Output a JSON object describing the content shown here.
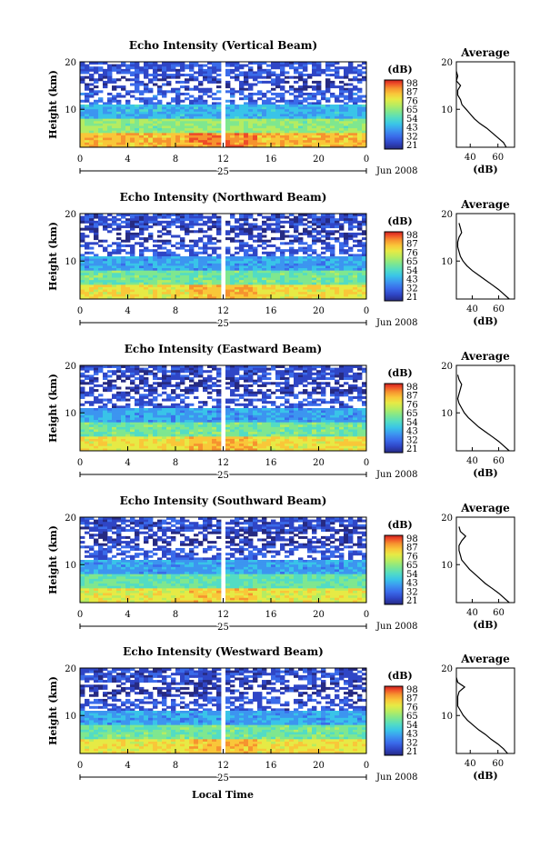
{
  "colors": {
    "colormap": [
      "#262a82",
      "#2f46c6",
      "#3a6bea",
      "#3c95f0",
      "#39c4e8",
      "#53dcc4",
      "#7fe78f",
      "#b5ec62",
      "#e6ea45",
      "#f9c739",
      "#f6932f",
      "#ee4c28",
      "#c8201e"
    ]
  },
  "panels": [
    {
      "title": "Echo Intensity (Vertical Beam)",
      "ylabel": "Height (km)",
      "yticks": [
        "20",
        "10"
      ],
      "xticks": [
        "0",
        "4",
        "8",
        "12",
        "16",
        "20",
        "0"
      ],
      "date_label": "25",
      "month_label": "Jun 2008",
      "cbar_label": "(dB)",
      "cbar_ticks": [
        "98",
        "87",
        "76",
        "65",
        "54",
        "43",
        "32",
        "21"
      ],
      "avg_title": "Average",
      "avg_yticks": [
        "20",
        "10"
      ],
      "avg_xticks": [
        "40",
        "60"
      ],
      "avg_xlabel": "(dB)"
    },
    {
      "title": "Echo Intensity (Northward Beam)",
      "ylabel": "Height (km)",
      "yticks": [
        "20",
        "10"
      ],
      "xticks": [
        "0",
        "4",
        "8",
        "12",
        "16",
        "20",
        "0"
      ],
      "date_label": "25",
      "month_label": "Jun 2008",
      "cbar_label": "(dB)",
      "cbar_ticks": [
        "98",
        "87",
        "76",
        "65",
        "54",
        "43",
        "32",
        "21"
      ],
      "avg_title": "Average",
      "avg_yticks": [
        "20",
        "10"
      ],
      "avg_xticks": [
        "40",
        "60"
      ],
      "avg_xlabel": "(dB)"
    },
    {
      "title": "Echo Intensity (Eastward Beam)",
      "ylabel": "Height (km)",
      "yticks": [
        "20",
        "10"
      ],
      "xticks": [
        "0",
        "4",
        "8",
        "12",
        "16",
        "20",
        "0"
      ],
      "date_label": "25",
      "month_label": "Jun 2008",
      "cbar_label": "(dB)",
      "cbar_ticks": [
        "98",
        "87",
        "76",
        "65",
        "54",
        "43",
        "32",
        "21"
      ],
      "avg_title": "Average",
      "avg_yticks": [
        "20",
        "10"
      ],
      "avg_xticks": [
        "40",
        "60"
      ],
      "avg_xlabel": "(dB)"
    },
    {
      "title": "Echo Intensity (Southward Beam)",
      "ylabel": "Height (km)",
      "yticks": [
        "20",
        "10"
      ],
      "xticks": [
        "0",
        "4",
        "8",
        "12",
        "16",
        "20",
        "0"
      ],
      "date_label": "25",
      "month_label": "Jun 2008",
      "cbar_label": "(dB)",
      "cbar_ticks": [
        "98",
        "87",
        "76",
        "65",
        "54",
        "43",
        "32",
        "21"
      ],
      "avg_title": "Average",
      "avg_yticks": [
        "20",
        "10"
      ],
      "avg_xticks": [
        "40",
        "60"
      ],
      "avg_xlabel": "(dB)"
    },
    {
      "title": "Echo Intensity (Westward Beam)",
      "ylabel": "Height (km)",
      "yticks": [
        "20",
        "10"
      ],
      "xticks": [
        "0",
        "4",
        "8",
        "12",
        "16",
        "20",
        "0"
      ],
      "date_label": "25",
      "month_label": "Jun 2008",
      "cbar_label": "(dB)",
      "cbar_ticks": [
        "98",
        "87",
        "76",
        "65",
        "54",
        "43",
        "32",
        "21"
      ],
      "avg_title": "Average",
      "avg_yticks": [
        "20",
        "10"
      ],
      "avg_xticks": [
        "40",
        "60"
      ],
      "avg_xlabel": "(dB)"
    }
  ],
  "xlabel_bottom": "Local Time",
  "chart_data": [
    {
      "type": "heatmap",
      "title": "Echo Intensity (Vertical Beam)",
      "xlabel": "",
      "ylabel": "Height (km)",
      "xlim": [
        0,
        24
      ],
      "ylim": [
        2,
        20
      ],
      "colorbar": {
        "label": "(dB)",
        "range": [
          21,
          98
        ]
      },
      "gap_x": 12,
      "layers": [
        {
          "h_min": 2,
          "h_max": 5,
          "db": 80
        },
        {
          "h_min": 5,
          "h_max": 8,
          "db": 62
        },
        {
          "h_min": 8,
          "h_max": 11,
          "db": 45
        },
        {
          "h_min": 11,
          "h_max": 14,
          "db": 32
        },
        {
          "h_min": 14,
          "h_max": 17,
          "db": 26
        },
        {
          "h_min": 17,
          "h_max": 20,
          "db": 30
        }
      ]
    },
    {
      "type": "line",
      "title": "Average",
      "xlabel": "(dB)",
      "ylabel": "",
      "xlim": [
        30,
        72
      ],
      "ylim": [
        2,
        20
      ],
      "x": [
        66,
        64,
        60,
        56,
        52,
        47,
        43,
        40,
        37,
        34,
        33,
        31,
        31,
        33,
        30,
        31,
        30
      ],
      "y": [
        2,
        3,
        4,
        5,
        6,
        7,
        8,
        9,
        10,
        11,
        12,
        13,
        14,
        15,
        16,
        17,
        18
      ]
    },
    {
      "type": "heatmap",
      "title": "Echo Intensity (Northward Beam)",
      "xlabel": "",
      "ylabel": "Height (km)",
      "xlim": [
        0,
        24
      ],
      "ylim": [
        2,
        20
      ],
      "colorbar": {
        "label": "(dB)",
        "range": [
          21,
          98
        ]
      },
      "gap_x": 12,
      "layers": [
        {
          "h_min": 2,
          "h_max": 5,
          "db": 74
        },
        {
          "h_min": 5,
          "h_max": 8,
          "db": 58
        },
        {
          "h_min": 8,
          "h_max": 11,
          "db": 42
        },
        {
          "h_min": 11,
          "h_max": 14,
          "db": 30
        },
        {
          "h_min": 14,
          "h_max": 17,
          "db": 25
        },
        {
          "h_min": 17,
          "h_max": 20,
          "db": 28
        }
      ]
    },
    {
      "type": "line",
      "title": "Average",
      "xlabel": "(dB)",
      "ylabel": "",
      "xlim": [
        28,
        72
      ],
      "ylim": [
        2,
        20
      ],
      "x": [
        68,
        64,
        60,
        55,
        50,
        45,
        40,
        36,
        33,
        31,
        30,
        29,
        29,
        30,
        32,
        31,
        30
      ],
      "y": [
        2,
        3,
        4,
        5,
        6,
        7,
        8,
        9,
        10,
        11,
        12,
        13,
        14,
        15,
        16,
        17,
        18
      ]
    },
    {
      "type": "heatmap",
      "title": "Echo Intensity (Eastward Beam)",
      "xlabel": "",
      "ylabel": "Height (km)",
      "xlim": [
        0,
        24
      ],
      "ylim": [
        2,
        20
      ],
      "colorbar": {
        "label": "(dB)",
        "range": [
          21,
          98
        ]
      },
      "gap_x": 12,
      "layers": [
        {
          "h_min": 2,
          "h_max": 5,
          "db": 74
        },
        {
          "h_min": 5,
          "h_max": 8,
          "db": 58
        },
        {
          "h_min": 8,
          "h_max": 11,
          "db": 42
        },
        {
          "h_min": 11,
          "h_max": 14,
          "db": 30
        },
        {
          "h_min": 14,
          "h_max": 17,
          "db": 25
        },
        {
          "h_min": 17,
          "h_max": 20,
          "db": 28
        }
      ]
    },
    {
      "type": "line",
      "title": "Average",
      "xlabel": "(dB)",
      "ylabel": "",
      "xlim": [
        28,
        72
      ],
      "ylim": [
        2,
        20
      ],
      "x": [
        68,
        64,
        60,
        55,
        50,
        45,
        41,
        37,
        34,
        32,
        30,
        29,
        30,
        31,
        32,
        30,
        29
      ],
      "y": [
        2,
        3,
        4,
        5,
        6,
        7,
        8,
        9,
        10,
        11,
        12,
        13,
        14,
        15,
        16,
        17,
        18
      ]
    },
    {
      "type": "heatmap",
      "title": "Echo Intensity (Southward Beam)",
      "xlabel": "",
      "ylabel": "Height (km)",
      "xlim": [
        0,
        24
      ],
      "ylim": [
        2,
        20
      ],
      "colorbar": {
        "label": "(dB)",
        "range": [
          21,
          98
        ]
      },
      "gap_x": 12,
      "layers": [
        {
          "h_min": 2,
          "h_max": 5,
          "db": 72
        },
        {
          "h_min": 5,
          "h_max": 8,
          "db": 56
        },
        {
          "h_min": 8,
          "h_max": 11,
          "db": 42
        },
        {
          "h_min": 11,
          "h_max": 14,
          "db": 30
        },
        {
          "h_min": 14,
          "h_max": 17,
          "db": 25
        },
        {
          "h_min": 17,
          "h_max": 20,
          "db": 28
        }
      ]
    },
    {
      "type": "line",
      "title": "Average",
      "xlabel": "(dB)",
      "ylabel": "",
      "xlim": [
        28,
        72
      ],
      "ylim": [
        2,
        20
      ],
      "x": [
        68,
        64,
        60,
        55,
        50,
        46,
        42,
        38,
        35,
        32,
        31,
        30,
        30,
        32,
        35,
        31,
        30
      ],
      "y": [
        2,
        3,
        4,
        5,
        6,
        7,
        8,
        9,
        10,
        11,
        12,
        13,
        14,
        15,
        16,
        17,
        18
      ]
    },
    {
      "type": "heatmap",
      "title": "Echo Intensity (Westward Beam)",
      "xlabel": "Local Time",
      "ylabel": "Height (km)",
      "xlim": [
        0,
        24
      ],
      "ylim": [
        2,
        20
      ],
      "colorbar": {
        "label": "(dB)",
        "range": [
          21,
          98
        ]
      },
      "gap_x": 12,
      "layers": [
        {
          "h_min": 2,
          "h_max": 5,
          "db": 74
        },
        {
          "h_min": 5,
          "h_max": 8,
          "db": 58
        },
        {
          "h_min": 8,
          "h_max": 11,
          "db": 42
        },
        {
          "h_min": 11,
          "h_max": 14,
          "db": 30
        },
        {
          "h_min": 14,
          "h_max": 17,
          "db": 25
        },
        {
          "h_min": 17,
          "h_max": 20,
          "db": 28
        }
      ]
    },
    {
      "type": "line",
      "title": "Average",
      "xlabel": "(dB)",
      "ylabel": "",
      "xlim": [
        30,
        72
      ],
      "ylim": [
        2,
        20
      ],
      "x": [
        67,
        64,
        60,
        55,
        51,
        46,
        42,
        38,
        35,
        33,
        31,
        31,
        31,
        32,
        36,
        31,
        30
      ],
      "y": [
        2,
        3,
        4,
        5,
        6,
        7,
        8,
        9,
        10,
        11,
        12,
        13,
        14,
        15,
        16,
        17,
        18
      ]
    }
  ]
}
